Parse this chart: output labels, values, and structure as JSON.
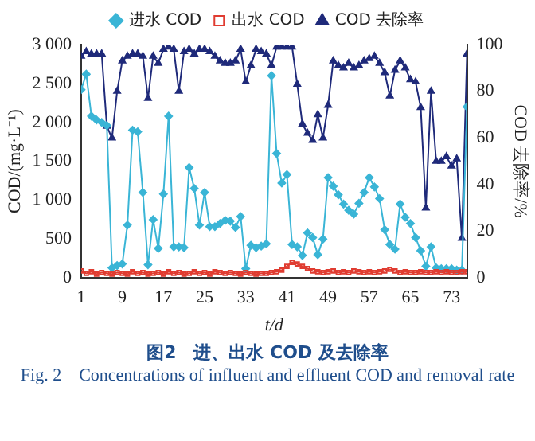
{
  "chart_data": {
    "type": "line",
    "title": "图2　进、出水 COD 及去除率",
    "annotations": [
      "Fig. 2　Concentrations of influent and effluent COD and removal rate"
    ],
    "xlabel": "t/d",
    "ylabel": "COD/(mg·L⁻¹)",
    "y2label": "COD 去除率/%",
    "x": [
      1,
      2,
      3,
      4,
      5,
      6,
      7,
      8,
      9,
      10,
      11,
      12,
      13,
      14,
      15,
      16,
      17,
      18,
      19,
      20,
      21,
      22,
      23,
      24,
      25,
      26,
      27,
      28,
      29,
      30,
      31,
      32,
      33,
      34,
      35,
      36,
      37,
      38,
      39,
      40,
      41,
      42,
      43,
      44,
      45,
      46,
      47,
      48,
      49,
      50,
      51,
      52,
      53,
      54,
      55,
      56,
      57,
      58,
      59,
      60,
      61,
      62,
      63,
      64,
      65,
      66,
      67,
      68,
      69,
      70,
      71,
      72,
      73,
      74,
      75,
      76
    ],
    "xlim": [
      1,
      76
    ],
    "xticks": [
      1,
      9,
      17,
      25,
      33,
      41,
      49,
      57,
      65,
      73
    ],
    "ylim": [
      0,
      3000
    ],
    "yticks": [
      0,
      500,
      {
        "value": 1000,
        "label": "1 000"
      },
      {
        "value": 1500,
        "label": "1 500"
      },
      {
        "value": 2000,
        "label": "2 000"
      },
      {
        "value": 2500,
        "label": "2 500"
      },
      {
        "value": 3000,
        "label": "3 000"
      }
    ],
    "y2lim": [
      0,
      100
    ],
    "y2ticks": [
      0,
      20,
      40,
      60,
      80,
      100
    ],
    "legend": "top",
    "grid": false,
    "series": [
      {
        "name": "进水 COD",
        "color": "#3ab5d6",
        "marker": "diamond",
        "values": [
          2420,
          2620,
          2080,
          2030,
          2000,
          1960,
          130,
          160,
          180,
          680,
          1900,
          1880,
          1100,
          170,
          750,
          380,
          1080,
          2080,
          400,
          400,
          390,
          1420,
          1150,
          680,
          1100,
          660,
          660,
          700,
          740,
          730,
          650,
          790,
          120,
          420,
          390,
          410,
          440,
          2600,
          1600,
          1220,
          1330,
          430,
          400,
          290,
          580,
          520,
          300,
          500,
          1290,
          1180,
          1070,
          950,
          870,
          820,
          960,
          1100,
          1290,
          1170,
          1020,
          620,
          430,
          370,
          950,
          780,
          700,
          520,
          350,
          150,
          400,
          130,
          120,
          120,
          120,
          100,
          100,
          2200
        ]
      },
      {
        "name": "出水 COD",
        "color": "#e03c31",
        "marker": "square",
        "values": [
          90,
          60,
          80,
          50,
          70,
          60,
          50,
          70,
          60,
          50,
          80,
          60,
          70,
          50,
          60,
          70,
          50,
          80,
          60,
          70,
          50,
          60,
          80,
          60,
          70,
          50,
          80,
          70,
          60,
          70,
          60,
          50,
          70,
          60,
          50,
          60,
          60,
          70,
          80,
          100,
          150,
          200,
          180,
          150,
          120,
          90,
          80,
          70,
          80,
          90,
          70,
          80,
          70,
          90,
          80,
          70,
          80,
          70,
          80,
          90,
          110,
          90,
          70,
          80,
          70,
          70,
          80,
          70,
          70,
          80,
          70,
          80,
          70,
          70,
          80,
          80
        ]
      },
      {
        "name": "COD 去除率",
        "color": "#1f2a7a",
        "marker": "triangle",
        "axis": "y2",
        "values": [
          95,
          97,
          96,
          96,
          96,
          65,
          60,
          80,
          93,
          95,
          96,
          96,
          95,
          77,
          95,
          92,
          98,
          99,
          98,
          80,
          97,
          98,
          96,
          98,
          98,
          97,
          95,
          93,
          92,
          92,
          93,
          98,
          84,
          91,
          98,
          97,
          96,
          91,
          99,
          99,
          99,
          99,
          83,
          66,
          62,
          59,
          70,
          60,
          74,
          93,
          91,
          90,
          92,
          90,
          91,
          93,
          94,
          95,
          92,
          88,
          78,
          89,
          93,
          90,
          85,
          84,
          73,
          30,
          80,
          50,
          50,
          52,
          48,
          51,
          17,
          96
        ]
      }
    ]
  }
}
